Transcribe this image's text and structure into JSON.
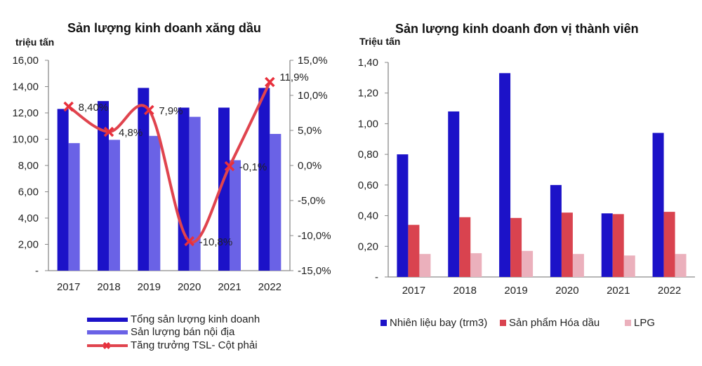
{
  "chart_data": [
    {
      "type": "bar",
      "title": "Sản lượng kinh doanh xăng dầu",
      "ylabel": "triệu tấn",
      "categories": [
        "2017",
        "2018",
        "2019",
        "2020",
        "2021",
        "2022"
      ],
      "ylim": [
        0,
        16
      ],
      "yticks": [
        0,
        2,
        4,
        6,
        8,
        10,
        12,
        14,
        16
      ],
      "ytick_labels": [
        "-",
        "2,00",
        "4,00",
        "6,00",
        "8,00",
        "10,00",
        "12,00",
        "14,00",
        "16,00"
      ],
      "y2lim": [
        -15,
        15
      ],
      "y2ticks": [
        -15,
        -10,
        -5,
        0,
        5,
        10,
        15
      ],
      "y2tick_labels": [
        "-15,0%",
        "-10,0%",
        "-5,0%",
        "0,0%",
        "5,0%",
        "10,0%",
        "15,0%"
      ],
      "series": [
        {
          "name": "Tổng sản lượng kinh doanh",
          "kind": "bar",
          "axis": "left",
          "color": "#1C12C8",
          "values": [
            12.3,
            12.9,
            13.9,
            12.4,
            12.4,
            13.9
          ]
        },
        {
          "name": "Sản lượng bán nội địa",
          "kind": "bar",
          "axis": "left",
          "color": "#6A62E6",
          "values": [
            9.7,
            9.95,
            10.25,
            11.7,
            8.4,
            10.4
          ]
        },
        {
          "name": "Tăng trưởng TSL- Cột phải",
          "kind": "line",
          "axis": "right",
          "color": "#E0444E",
          "values": [
            8.4,
            4.8,
            7.9,
            -10.8,
            -0.1,
            11.9
          ],
          "labels": [
            "8,40%",
            "4,8%",
            "7,9%",
            "-10,8%",
            "-0,1%",
            "11,9%"
          ]
        }
      ],
      "legend": "bottom",
      "grid": false
    },
    {
      "type": "bar",
      "title": "Sản lượng kinh doanh đơn vị thành viên",
      "ylabel": "Triệu tấn",
      "categories": [
        "2017",
        "2018",
        "2019",
        "2020",
        "2021",
        "2022"
      ],
      "ylim": [
        0,
        1.4
      ],
      "yticks": [
        0,
        0.2,
        0.4,
        0.6,
        0.8,
        1.0,
        1.2,
        1.4
      ],
      "ytick_labels": [
        "-",
        "0,20",
        "0,40",
        "0,60",
        "0,80",
        "1,00",
        "1,20",
        "1,40"
      ],
      "series": [
        {
          "name": "Nhiên liệu bay (trm3)",
          "color": "#1C12C8",
          "values": [
            0.8,
            1.08,
            1.33,
            0.6,
            0.415,
            0.94
          ]
        },
        {
          "name": "Sản phẩm Hóa dầu",
          "color": "#D9434F",
          "values": [
            0.34,
            0.39,
            0.385,
            0.42,
            0.41,
            0.425
          ]
        },
        {
          "name": "LPG",
          "color": "#EBB0BC",
          "values": [
            0.15,
            0.155,
            0.17,
            0.15,
            0.14,
            0.15
          ]
        }
      ],
      "legend": "bottom",
      "grid": false
    }
  ]
}
